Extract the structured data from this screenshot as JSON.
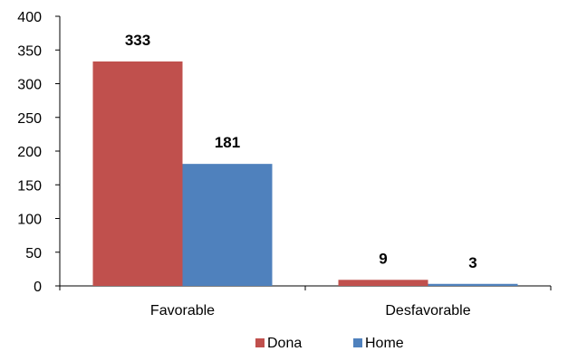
{
  "chart_data": {
    "type": "bar",
    "categories": [
      "Favorable",
      "Desfavorable"
    ],
    "series": [
      {
        "name": "Dona",
        "values": [
          333,
          9
        ],
        "color": "#C0504D"
      },
      {
        "name": "Home",
        "values": [
          181,
          3
        ],
        "color": "#4F81BD"
      }
    ],
    "ylim": [
      0,
      400
    ],
    "yticks": [
      0,
      50,
      100,
      150,
      200,
      250,
      300,
      350,
      400
    ],
    "grid": false,
    "legend": "bottom",
    "title": "",
    "xlabel": "",
    "ylabel": ""
  }
}
